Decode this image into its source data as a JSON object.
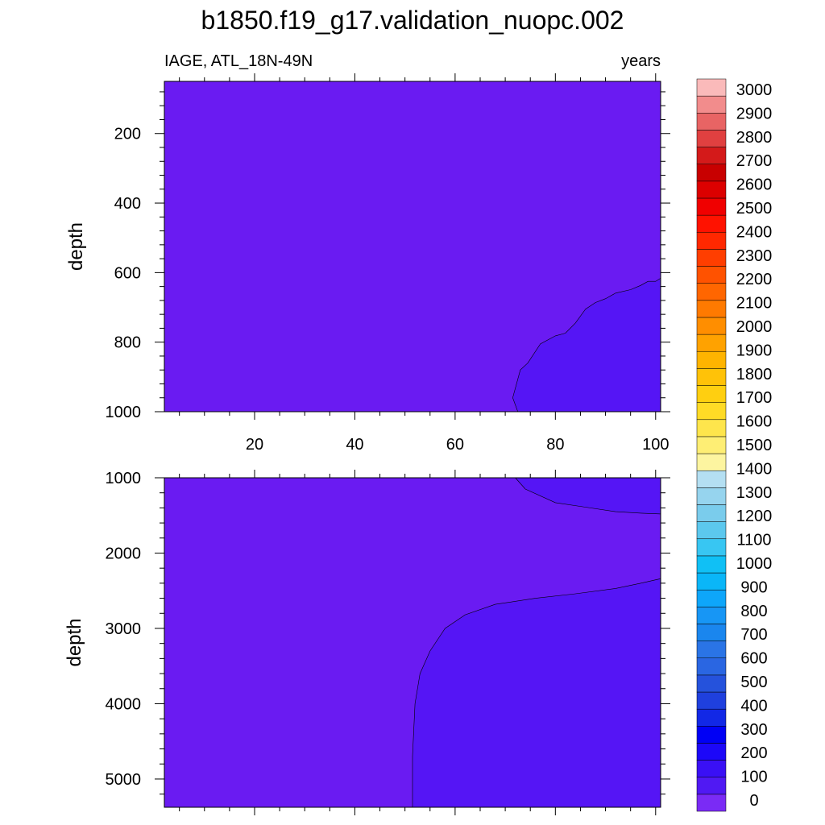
{
  "chart_data": {
    "type": "contour",
    "title": "b1850.f19_g17.validation_nuopc.002",
    "left_subtitle": "IAGE, ATL_18N-49N",
    "right_subtitle": "years",
    "x_ticks": [
      20,
      40,
      60,
      80,
      100
    ],
    "xlim": [
      2,
      101
    ],
    "colorbar": {
      "levels": [
        0,
        100,
        200,
        300,
        400,
        500,
        600,
        700,
        800,
        900,
        1000,
        1100,
        1200,
        1300,
        1400,
        1500,
        1600,
        1700,
        1800,
        1900,
        2000,
        2100,
        2200,
        2300,
        2400,
        2500,
        2600,
        2700,
        2800,
        2900,
        3000
      ],
      "level_labels": [
        "0",
        "100",
        "200",
        "300",
        "400",
        "500",
        "600",
        "700",
        "800",
        "900",
        "1000",
        "1100",
        "1200",
        "1300",
        "1400",
        "1500",
        "1600",
        "1700",
        "1800",
        "1900",
        "2000",
        "2100",
        "2200",
        "2300",
        "2400",
        "2500",
        "2600",
        "2700",
        "2800",
        "2900",
        "3000"
      ],
      "colors": [
        "#7A2BF5",
        "#5019F3",
        "#3A10F5",
        "#1C08F8",
        "#0000F5",
        "#1228E6",
        "#1F40DE",
        "#2552DC",
        "#2A66E2",
        "#2A74E6",
        "#1A86EE",
        "#1796F5",
        "#0EA6FA",
        "#0AB6F8",
        "#10C0F5",
        "#38C6F2",
        "#5CC8EE",
        "#7ACCEC",
        "#96D4EE",
        "#B4DFF2",
        "#FDF5A0",
        "#FEEE74",
        "#FEE54C",
        "#FFDB26",
        "#FFCF10",
        "#FFC208",
        "#FFB400",
        "#FFA200",
        "#FF8E00",
        "#FF7A00",
        "#FF6600",
        "#FF5200",
        "#FF3E00",
        "#FF2800",
        "#FF1200",
        "#F00000",
        "#DC0000",
        "#C80000",
        "#D41A1A",
        "#E04040",
        "#E86464",
        "#F28C8C",
        "#FABABA"
      ]
    },
    "panels": [
      {
        "name": "upper",
        "ylabel": "depth",
        "y_ticks": [
          200,
          400,
          600,
          800,
          1000
        ],
        "ylim": [
          50,
          1000
        ],
        "y_reversed": true,
        "background_color": "#6A1BF2",
        "filled_regions": [
          {
            "color": "#5515F5",
            "value_range": [
              100,
              200
            ],
            "boundary": [
              [
                72.5,
                1000
              ],
              [
                71.5,
                960
              ],
              [
                73,
                880
              ],
              [
                74.5,
                860
              ],
              [
                77,
                805
              ],
              [
                80,
                782
              ],
              [
                82,
                774
              ],
              [
                84,
                745
              ],
              [
                86,
                705
              ],
              [
                88,
                686
              ],
              [
                90,
                675
              ],
              [
                92,
                659
              ],
              [
                95,
                649
              ],
              [
                97,
                637
              ],
              [
                98.5,
                625
              ],
              [
                100,
                625
              ],
              [
                101,
                616
              ],
              [
                101,
                1000
              ]
            ]
          }
        ]
      },
      {
        "name": "lower",
        "ylabel": "depth",
        "y_ticks": [
          1000,
          2000,
          3000,
          4000,
          5000
        ],
        "ylim": [
          1000,
          5375
        ],
        "y_reversed": true,
        "background_color": "#6A1BF2",
        "filled_regions": [
          {
            "color": "#5515F5",
            "value_range": [
              100,
              200
            ],
            "boundary": [
              [
                72,
                1000
              ],
              [
                74,
                1150
              ],
              [
                80,
                1330
              ],
              [
                86,
                1390
              ],
              [
                92,
                1450
              ],
              [
                97,
                1470
              ],
              [
                101,
                1480
              ],
              [
                101,
                1000
              ]
            ]
          },
          {
            "color": "#5515F5",
            "value_range": [
              100,
              200
            ],
            "boundary": [
              [
                51.5,
                5375
              ],
              [
                51.5,
                4700
              ],
              [
                52,
                4000
              ],
              [
                53,
                3600
              ],
              [
                55,
                3300
              ],
              [
                58,
                3000
              ],
              [
                62,
                2820
              ],
              [
                68,
                2680
              ],
              [
                76,
                2600
              ],
              [
                84,
                2540
              ],
              [
                92,
                2470
              ],
              [
                97,
                2400
              ],
              [
                101,
                2340
              ],
              [
                101,
                5375
              ]
            ]
          }
        ]
      }
    ]
  }
}
